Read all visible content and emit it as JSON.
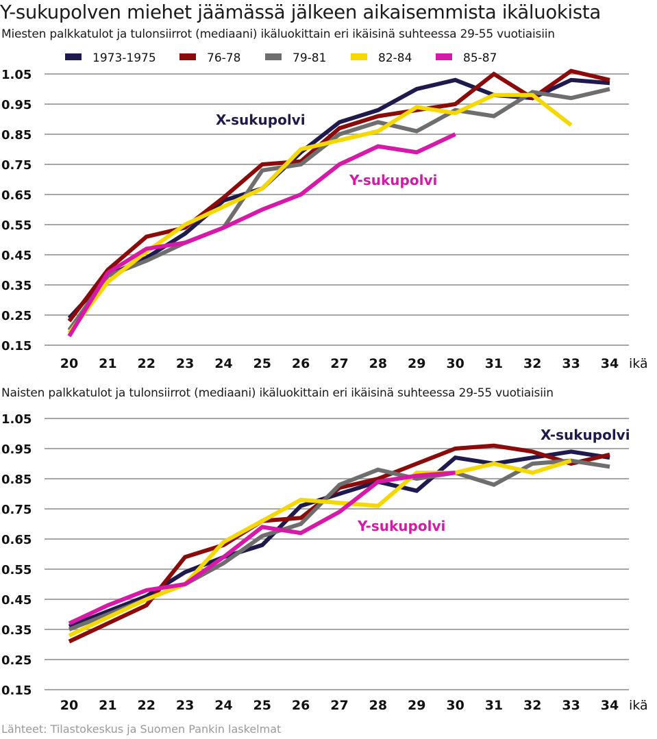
{
  "title": "Y-sukupolven miehet jäämässä jälkeen aikaisemmista ikäluokista",
  "source": "Lähteet: Tilastokeskus ja Suomen Pankin laskelmat",
  "legend": [
    {
      "name": "1973-1975",
      "color": "#1f1a4d"
    },
    {
      "name": "76-78",
      "color": "#8b0a0a"
    },
    {
      "name": "79-81",
      "color": "#6e6e6e"
    },
    {
      "name": "82-84",
      "color": "#f5d800"
    },
    {
      "name": "85-87",
      "color": "#d619a8"
    }
  ],
  "chart_data": [
    {
      "type": "line",
      "title": "Miesten palkkatulot ja tulonsiirrot (mediaani) ikäluokittain eri ikäisinä suhteessa 29-55 vuotiaisiin",
      "xlabel": "ikä",
      "ylabel": "",
      "ylim": [
        0.15,
        1.05
      ],
      "yticks": [
        "1.05",
        "0.95",
        "0.85",
        "0.75",
        "0.65",
        "0.55",
        "0.45",
        "0.35",
        "0.25",
        "0.15"
      ],
      "x": [
        "20",
        "21",
        "22",
        "23",
        "24",
        "25",
        "26",
        "27",
        "28",
        "29",
        "30",
        "31",
        "32",
        "33",
        "34"
      ],
      "series": [
        {
          "name": "1973-1975",
          "color": "#1f1a4d",
          "values": [
            0.24,
            0.38,
            0.44,
            0.52,
            0.63,
            0.67,
            0.79,
            0.89,
            0.93,
            1.0,
            1.03,
            0.98,
            0.97,
            1.03,
            1.02
          ]
        },
        {
          "name": "76-78",
          "color": "#8b0a0a",
          "values": [
            0.23,
            0.4,
            0.51,
            0.54,
            0.64,
            0.75,
            0.76,
            0.87,
            0.91,
            0.93,
            0.95,
            1.05,
            0.97,
            1.06,
            1.03
          ]
        },
        {
          "name": "79-81",
          "color": "#6e6e6e",
          "values": [
            0.2,
            0.38,
            0.43,
            0.49,
            0.54,
            0.73,
            0.75,
            0.85,
            0.89,
            0.86,
            0.93,
            0.91,
            0.99,
            0.97,
            1.0
          ]
        },
        {
          "name": "82-84",
          "color": "#f5d800",
          "values": [
            0.19,
            0.36,
            0.46,
            0.55,
            0.61,
            0.67,
            0.8,
            0.83,
            0.86,
            0.94,
            0.92,
            0.98,
            0.98,
            0.88,
            null
          ]
        },
        {
          "name": "85-87",
          "color": "#d619a8",
          "values": [
            0.18,
            0.39,
            0.47,
            0.49,
            0.54,
            0.6,
            0.65,
            0.75,
            0.81,
            0.79,
            0.85,
            null,
            null,
            null,
            null
          ]
        }
      ],
      "annotations": [
        {
          "text": "X-sukupolvi",
          "color": "#1f1a4d"
        },
        {
          "text": "Y-sukupolvi",
          "color": "#d619a8"
        }
      ]
    },
    {
      "type": "line",
      "title": "Naisten palkkatulot ja tulonsiirrot (mediaani) ikäluokittain eri ikäisinä suhteessa 29-55 vuotiaisiin",
      "xlabel": "ikä",
      "ylabel": "",
      "ylim": [
        0.15,
        1.05
      ],
      "yticks": [
        "1.05",
        "0.95",
        "0.85",
        "0.75",
        "0.65",
        "0.55",
        "0.45",
        "0.35",
        "0.25",
        "0.15"
      ],
      "x": [
        "20",
        "21",
        "22",
        "23",
        "24",
        "25",
        "26",
        "27",
        "28",
        "29",
        "30",
        "31",
        "32",
        "33",
        "34"
      ],
      "series": [
        {
          "name": "1973-1975",
          "color": "#1f1a4d",
          "values": [
            0.36,
            0.41,
            0.46,
            0.54,
            0.59,
            0.63,
            0.76,
            0.8,
            0.84,
            0.81,
            0.92,
            0.9,
            0.92,
            0.94,
            0.92
          ]
        },
        {
          "name": "76-78",
          "color": "#8b0a0a",
          "values": [
            0.31,
            0.37,
            0.43,
            0.59,
            0.63,
            0.71,
            0.72,
            0.82,
            0.85,
            0.9,
            0.95,
            0.96,
            0.94,
            0.9,
            0.93
          ]
        },
        {
          "name": "79-81",
          "color": "#6e6e6e",
          "values": [
            0.35,
            0.4,
            0.45,
            0.5,
            0.57,
            0.66,
            0.7,
            0.83,
            0.88,
            0.85,
            0.87,
            0.83,
            0.9,
            0.91,
            0.89
          ]
        },
        {
          "name": "82-84",
          "color": "#f5d800",
          "values": [
            0.33,
            0.39,
            0.45,
            0.5,
            0.64,
            0.71,
            0.78,
            0.77,
            0.76,
            0.87,
            0.87,
            0.9,
            0.87,
            0.91,
            null
          ]
        },
        {
          "name": "85-87",
          "color": "#d619a8",
          "values": [
            0.37,
            0.43,
            0.48,
            0.5,
            0.59,
            0.69,
            0.67,
            0.74,
            0.84,
            0.86,
            0.87,
            null,
            null,
            null,
            null
          ]
        }
      ],
      "annotations": [
        {
          "text": "X-sukupolvi",
          "color": "#1f1a4d"
        },
        {
          "text": "Y-sukupolvi",
          "color": "#d619a8"
        }
      ]
    }
  ]
}
